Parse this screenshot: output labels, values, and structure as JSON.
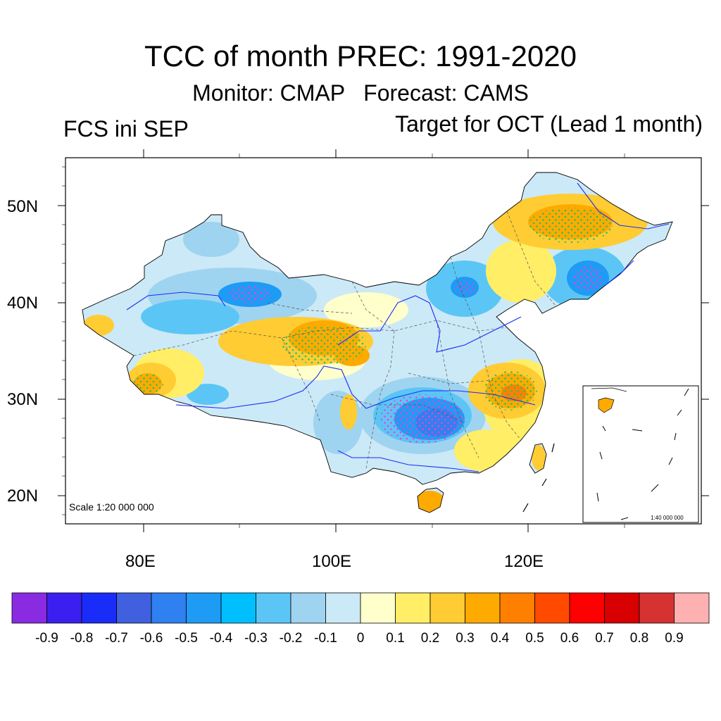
{
  "title": "TCC of month PREC: 1991-2020",
  "subtitle": "Monitor: CMAP   Forecast: CAMS",
  "left_string": "FCS ini SEP",
  "right_string": "Target for OCT (Lead 1 month)",
  "axes": {
    "y_ticks": [
      "20N",
      "30N",
      "40N",
      "50N"
    ],
    "x_ticks": [
      "80E",
      "100E",
      "120E"
    ],
    "lat_range": [
      17,
      55
    ],
    "lon_range": [
      72,
      138
    ]
  },
  "scale_main": "Scale 1:20 000 000",
  "scale_inset": "1:40 000 000",
  "colorbar": {
    "colors": [
      "#8a2be2",
      "#3a20f0",
      "#1a2cf8",
      "#4060e0",
      "#2f80f0",
      "#1e9bf5",
      "#00bfff",
      "#5bc6f5",
      "#9fd4f0",
      "#cce9f7",
      "#ffffcc",
      "#ffee66",
      "#ffcc33",
      "#ffaa00",
      "#ff8000",
      "#ff4a00",
      "#ff0000",
      "#d80000",
      "#d73232",
      "#ffb0b0"
    ],
    "labels": [
      "-0.9",
      "-0.8",
      "-0.7",
      "-0.6",
      "-0.5",
      "-0.4",
      "-0.3",
      "-0.2",
      "-0.1",
      "0",
      "0.1",
      "0.2",
      "0.3",
      "0.4",
      "0.5",
      "0.6",
      "0.7",
      "0.8",
      "0.9"
    ]
  },
  "map_colors": {
    "land_base": "#cce9f7",
    "neutral_pos": "#ffffcc",
    "weak_pos": "#ffee66",
    "mod_pos": "#ffcc33",
    "strong_pos": "#ffaa00",
    "very_strong_pos": "#ff8000",
    "weak_neg": "#9fd4f0",
    "mod_neg": "#5bc6f5",
    "strong_neg": "#1e9bf5",
    "very_strong_neg": "#2f80f0",
    "river": "#1a2cf8",
    "border": "#555555",
    "stipple_pos": "#22c55e",
    "stipple_neg": "#ff3ad0"
  }
}
